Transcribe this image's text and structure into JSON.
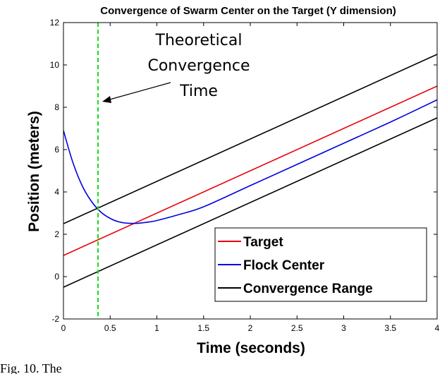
{
  "chart_data": {
    "type": "line",
    "title": "Convergence of Swarm Center on the Target (Y dimension)",
    "xlabel": "Time (seconds)",
    "ylabel": "Position (meters)",
    "xlim": [
      0,
      4
    ],
    "ylim": [
      -2,
      12
    ],
    "xticks": [
      "0",
      "0.5",
      "1",
      "1.5",
      "2",
      "2.5",
      "3",
      "3.5",
      "4"
    ],
    "yticks": [
      "-2",
      "0",
      "2",
      "4",
      "6",
      "8",
      "10",
      "12"
    ],
    "grid": false,
    "legend_position": "bottom-right",
    "series": [
      {
        "name": "Target",
        "color": "#e8000b",
        "x": [
          0,
          4
        ],
        "y": [
          1.0,
          9.0
        ]
      },
      {
        "name": "Flock Center",
        "color": "#0000e0",
        "x": [
          0,
          0.1,
          0.2,
          0.3,
          0.4,
          0.5,
          0.6,
          0.7,
          0.8,
          0.9,
          1.0,
          1.25,
          1.5,
          2.0,
          2.5,
          3.0,
          3.5,
          4.0
        ],
        "y": [
          6.9,
          5.4,
          4.3,
          3.55,
          3.05,
          2.75,
          2.58,
          2.52,
          2.52,
          2.57,
          2.65,
          2.95,
          3.3,
          4.3,
          5.3,
          6.3,
          7.3,
          8.35
        ]
      },
      {
        "name": "Convergence Range",
        "color": "#000000",
        "x": [
          0,
          4
        ],
        "y": [
          2.5,
          10.5
        ]
      },
      {
        "name": "",
        "color": "#000000",
        "x": [
          0,
          4
        ],
        "y": [
          -0.5,
          7.5
        ]
      }
    ],
    "vline": {
      "x": 0.37,
      "color": "#22dd22",
      "style": "dashed"
    },
    "annotation": {
      "lines": [
        "Theoretical",
        "Convergence",
        "Time"
      ]
    }
  },
  "caption_partial": "Fig. 10. The"
}
